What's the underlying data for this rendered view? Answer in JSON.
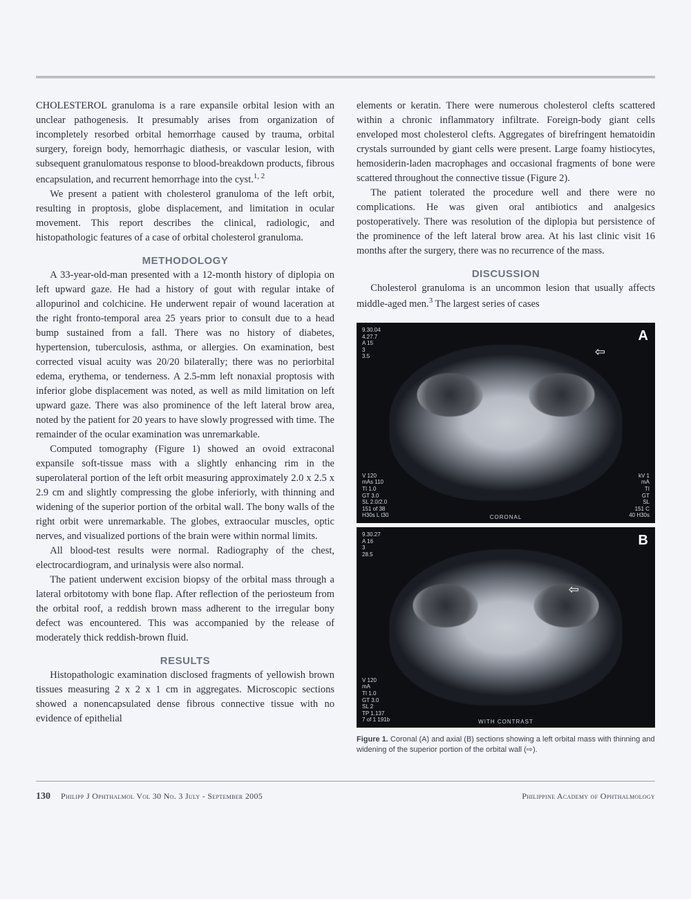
{
  "colors": {
    "page_bg": "#f4f5f8",
    "outer_bg": "#eef0f2",
    "body_text": "#2a2f3a",
    "heading_gray": "#6b7482",
    "rule": "#8a8f98",
    "scan_bg": "#0d0f13"
  },
  "typography": {
    "body_font": "Georgia, 'Times New Roman', serif",
    "heading_font": "Arial, Helvetica, sans-serif",
    "body_size_pt": 11,
    "heading_size_pt": 11.5,
    "caption_size_pt": 8.5,
    "line_height": 1.45
  },
  "left_col": {
    "p1": "CHOLESTEROL granuloma is a rare expansile orbital lesion with an unclear pathogenesis. It presumably arises from organization of incompletely resorbed orbital hemorrhage caused by trauma, orbital surgery, foreign body, hemorrhagic diathesis, or vascular lesion, with subsequent granulomatous response to blood-breakdown products, fibrous encapsulation, and recurrent hemorrhage into the cyst.",
    "p1_sup": "1, 2",
    "p2": "We present a patient with cholesterol granuloma of the left orbit, resulting in proptosis, globe displacement, and limitation in ocular movement. This report describes the clinical, radiologic, and histopathologic features of a case of orbital cholesterol granuloma.",
    "heading_methodology": "METHODOLOGY",
    "p3": "A 33-year-old-man presented with a 12-month history of diplopia on left upward gaze. He had a history of gout with regular intake of allopurinol and colchicine. He underwent repair of wound laceration at the right fronto-temporal area 25 years prior to consult due to a head bump sustained from a fall. There was no history of diabetes, hypertension, tuberculosis, asthma, or allergies. On examination, best corrected visual acuity was 20/20 bilaterally; there was no periorbital edema, erythema, or tenderness. A 2.5-mm left nonaxial proptosis with inferior globe displacement was noted, as well as mild limitation on left upward gaze. There was also prominence of the left lateral brow area, noted by the patient for 20 years to have slowly progressed with time. The remainder of the ocular examination was unremarkable.",
    "p4": "Computed tomography (Figure 1) showed an ovoid extraconal expansile soft-tissue mass with a slightly enhancing rim in the superolateral portion of the left orbit measuring approximately 2.0 x 2.5 x 2.9 cm and slightly compressing the globe inferiorly, with thinning and widening of the superior portion of the orbital wall. The bony walls of the right orbit were unremarkable. The globes, extraocular muscles, optic nerves, and visualized portions of the brain were within normal limits.",
    "p5": "All blood-test results were normal. Radiography of the chest, electrocardiogram, and urinalysis were also normal.",
    "p6": "The patient underwent excision biopsy of the orbital mass through a lateral orbitotomy with bone flap. After reflection of the periosteum from the orbital roof, a reddish brown mass adherent to the irregular bony defect was encountered. This was accompanied by the release of moderately thick reddish-brown fluid.",
    "heading_results": "RESULTS",
    "p7": "Histopathologic examination disclosed fragments of yellowish brown tissues measuring 2 x 2 x 1 cm in aggregates. Microscopic sections showed a nonencapsulated dense fibrous connective tissue with no evidence of epithelial"
  },
  "right_col": {
    "p1": "elements or keratin. There were numerous cholesterol clefts scattered within a chronic inflammatory infiltrate. Foreign-body giant cells enveloped most cholesterol clefts. Aggregates of birefringent hematoidin crystals surrounded by giant cells were present. Large foamy histiocytes, hemosiderin-laden macrophages and occasional fragments of bone were scattered throughout the connective tissue (Figure 2).",
    "p2": "The patient tolerated the procedure well and there were no complications. He was given oral antibiotics and analgesics postoperatively. There was resolution of the diplopia but persistence of the prominence of the left lateral brow area. At his last clinic visit 16 months after the surgery, there was no recurrence of the mass.",
    "heading_discussion": "DISCUSSION",
    "p3_a": "Cholesterol granuloma is an uncommon lesion that usually affects middle-aged men.",
    "p3_sup": "3",
    "p3_b": " The largest series of cases"
  },
  "figure1": {
    "panel_a_label": "A",
    "panel_b_label": "B",
    "panel_a_overlay_tl": "9.30.04\n4.27.7\nA 15\n3\n3.5",
    "panel_a_overlay_bl": "V 120\nmAs 110\nTI 1.0\nGT 3.0\nSL 2.0/2.0\n151 of 38\nH30s L t30",
    "panel_a_overlay_br": "kV 1\nmA\nTI\nGT\nSL\n151 C\n40 H30s",
    "panel_a_bottom": "CORONAL",
    "panel_b_overlay_tl": "9.30.27\nA 16\n3\n28.5",
    "panel_b_overlay_bl": "V 120\nmA\nTI 1.0\nGT 3.0\nSL 2\nTP 1.137\n7 of 1 191b",
    "panel_b_bottom": "WITH CONTRAST",
    "caption_label": "Figure 1.",
    "caption_text": "Coronal (A) and axial (B) sections showing a left orbital mass with thinning and widening of the superior portion of the orbital wall (⇨)."
  },
  "footer": {
    "page_number": "130",
    "journal_line": "Philipp J Ophthalmol Vol 30 No. 3 July - September 2005",
    "right": "Philippine Academy of Ophthalmology"
  }
}
